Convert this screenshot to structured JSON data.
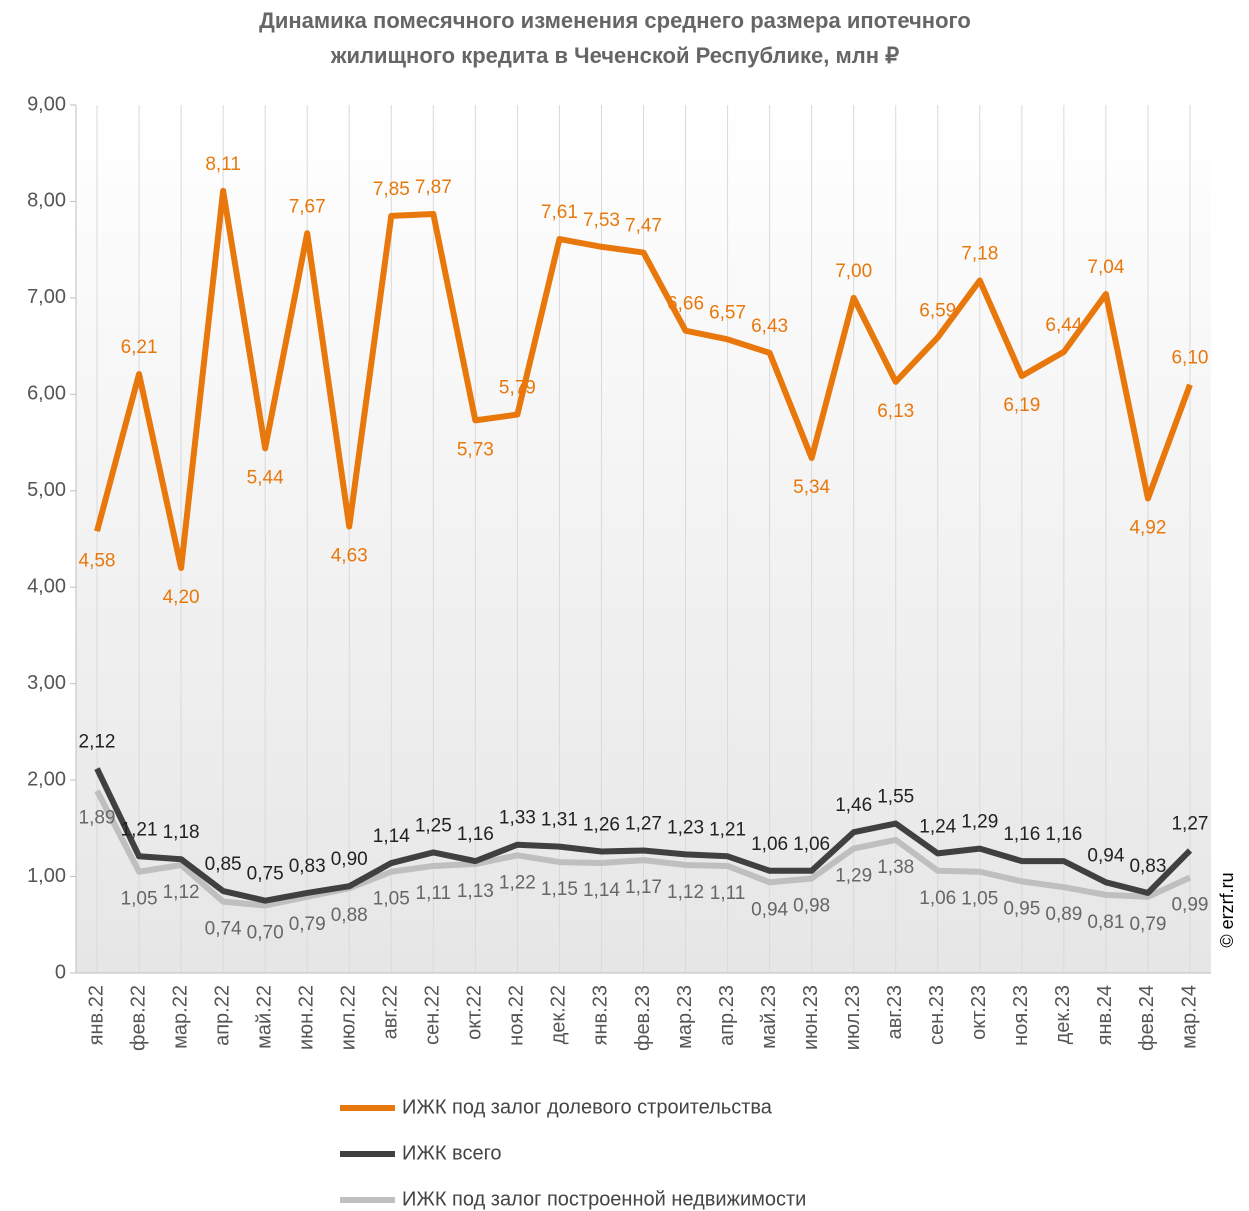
{
  "chart_data": {
    "type": "line",
    "title": [
      "Динамика помесячного изменения среднего размера ипотечного",
      "жилищного кредита в Чеченской Республике, млн ₽"
    ],
    "credit": "© erzrf.ru",
    "categories": [
      "янв.22",
      "фев.22",
      "мар.22",
      "апр.22",
      "май.22",
      "июн.22",
      "июл.22",
      "авг.22",
      "сен.22",
      "окт.22",
      "ноя.22",
      "дек.22",
      "янв.23",
      "фев.23",
      "мар.23",
      "апр.23",
      "май.23",
      "июн.23",
      "июл.23",
      "авг.23",
      "сен.23",
      "окт.23",
      "ноя.23",
      "дек.23",
      "янв.24",
      "фев.24",
      "мар.24"
    ],
    "series": [
      {
        "name": "ИЖК под залог долевого строительства",
        "color": "#e8780c",
        "values": [
          4.58,
          6.21,
          4.2,
          8.11,
          5.44,
          7.67,
          4.63,
          7.85,
          7.87,
          5.73,
          5.79,
          7.61,
          7.53,
          7.47,
          6.66,
          6.57,
          6.43,
          5.34,
          7.0,
          6.13,
          6.59,
          7.18,
          6.19,
          6.44,
          7.04,
          4.92,
          6.1
        ],
        "value_labels": [
          "4,58",
          "6,21",
          "4,20",
          "8,11",
          "5,44",
          "7,67",
          "4,63",
          "7,85",
          "7,87",
          "5,73",
          "5,79",
          "7,61",
          "7,53",
          "7,47",
          "6,66",
          "6,57",
          "6,43",
          "5,34",
          "7,00",
          "6,13",
          "6,59",
          "7,18",
          "6,19",
          "6,44",
          "7,04",
          "4,92",
          "6,10"
        ]
      },
      {
        "name": "ИЖК всего",
        "color": "#404040",
        "values": [
          2.12,
          1.21,
          1.18,
          0.85,
          0.75,
          0.83,
          0.9,
          1.14,
          1.25,
          1.16,
          1.33,
          1.31,
          1.26,
          1.27,
          1.23,
          1.21,
          1.06,
          1.06,
          1.46,
          1.55,
          1.24,
          1.29,
          1.16,
          1.16,
          0.94,
          0.83,
          1.27
        ],
        "value_labels": [
          "2,12",
          "1,21",
          "1,18",
          "0,85",
          "0,75",
          "0,83",
          "0,90",
          "1,14",
          "1,25",
          "1,16",
          "1,33",
          "1,31",
          "1,26",
          "1,27",
          "1,23",
          "1,21",
          "1,06",
          "1,06",
          "1,46",
          "1,55",
          "1,24",
          "1,29",
          "1,16",
          "1,16",
          "0,94",
          "0,83",
          "1,27"
        ]
      },
      {
        "name": "ИЖК под залог построенной недвижимости",
        "color": "#bfbfbf",
        "values": [
          1.89,
          1.05,
          1.12,
          0.74,
          0.7,
          0.79,
          0.88,
          1.05,
          1.11,
          1.13,
          1.22,
          1.15,
          1.14,
          1.17,
          1.12,
          1.11,
          0.94,
          0.98,
          1.29,
          1.38,
          1.06,
          1.05,
          0.95,
          0.89,
          0.81,
          0.79,
          0.99
        ],
        "value_labels": [
          "1,89",
          "1,05",
          "1,12",
          "0,74",
          "0,70",
          "0,79",
          "0,88",
          "1,05",
          "1,11",
          "1,13",
          "1,22",
          "1,15",
          "1,14",
          "1,17",
          "1,12",
          "1,11",
          "0,94",
          "0,98",
          "1,29",
          "1,38",
          "1,06",
          "1,05",
          "0,95",
          "0,89",
          "0,81",
          "0,79",
          "0,99"
        ]
      }
    ],
    "ylim": [
      0,
      9
    ],
    "yticks": [
      0,
      {
        "value": 1,
        "label": "1,00"
      },
      {
        "value": 2,
        "label": "2,00"
      },
      {
        "value": 3,
        "label": "3,00"
      },
      {
        "value": 4,
        "label": "4,00"
      },
      {
        "value": 5,
        "label": "5,00"
      },
      {
        "value": 6,
        "label": "6,00"
      },
      {
        "value": 7,
        "label": "7,00"
      },
      {
        "value": 8,
        "label": "8,00"
      },
      {
        "value": 9,
        "label": "9,00"
      }
    ],
    "legend": "bottom"
  }
}
